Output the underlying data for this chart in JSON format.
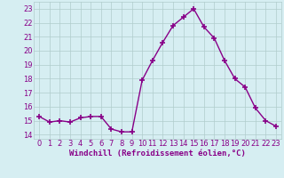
{
  "x": [
    0,
    1,
    2,
    3,
    4,
    5,
    6,
    7,
    8,
    9,
    10,
    11,
    12,
    13,
    14,
    15,
    16,
    17,
    18,
    19,
    20,
    21,
    22,
    23
  ],
  "y": [
    15.3,
    14.9,
    15.0,
    14.9,
    15.2,
    15.3,
    15.3,
    14.4,
    14.2,
    14.2,
    17.9,
    19.3,
    20.6,
    21.8,
    22.4,
    23.0,
    21.7,
    20.9,
    19.3,
    18.0,
    17.4,
    15.9,
    15.0,
    14.6
  ],
  "line_color": "#880088",
  "marker": "+",
  "markersize": 4,
  "linewidth": 1.0,
  "xlabel": "Windchill (Refroidissement éolien,°C)",
  "xlabel_fontsize": 6.5,
  "ylabel_ticks": [
    14,
    15,
    16,
    17,
    18,
    19,
    20,
    21,
    22,
    23
  ],
  "xlim": [
    -0.5,
    23.5
  ],
  "ylim": [
    13.7,
    23.5
  ],
  "bg_color": "#d6eef2",
  "grid_color": "#b0cccc",
  "tick_fontsize": 6.0,
  "tick_color": "#880088"
}
